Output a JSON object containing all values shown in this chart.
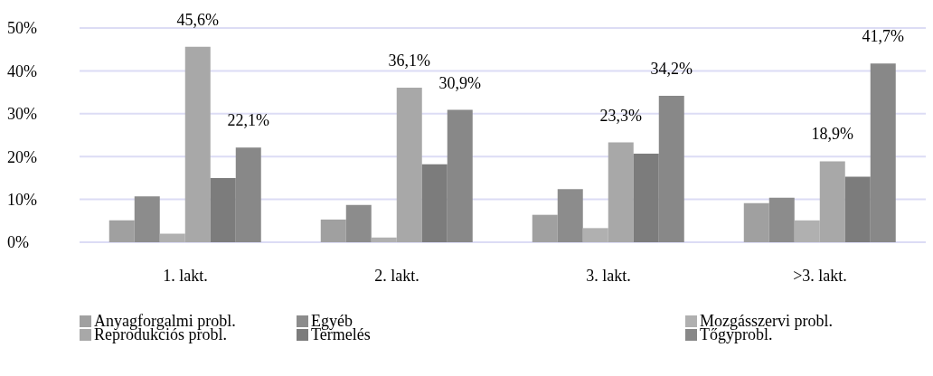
{
  "chart_data": {
    "type": "bar",
    "categories": [
      "1. lakt.",
      "2. lakt.",
      "3. lakt.",
      ">3. lakt."
    ],
    "series": [
      {
        "name": "Anyagforgalmi probl.",
        "color": "#a0a0a0",
        "values": [
          5.1,
          5.3,
          6.4,
          9.1
        ]
      },
      {
        "name": "Egyéb",
        "color": "#8c8c8c",
        "values": [
          10.7,
          8.7,
          12.4,
          10.4
        ]
      },
      {
        "name": "Mozgásszervi probl.",
        "color": "#b0b0b0",
        "values": [
          2.0,
          1.1,
          3.3,
          5.1
        ]
      },
      {
        "name": "Reprodukciós probl.",
        "color": "#a8a8a8",
        "values": [
          45.6,
          36.1,
          23.3,
          18.9
        ],
        "value_labels": [
          "45,6%",
          "36,1%",
          "23,3%",
          "18,9%"
        ]
      },
      {
        "name": "Termelés",
        "color": "#7c7c7c",
        "values": [
          15.0,
          18.2,
          20.7,
          15.3
        ]
      },
      {
        "name": "Tőgyprobl.",
        "color": "#888888",
        "values": [
          22.1,
          30.9,
          34.2,
          41.7
        ],
        "value_labels": [
          "22,1%",
          "30,9%",
          "34,2%",
          "41,7%"
        ]
      }
    ],
    "ylim": [
      0,
      50
    ],
    "yticks": [
      {
        "value": 0,
        "label": "0%"
      },
      {
        "value": 10,
        "label": "10%"
      },
      {
        "value": 20,
        "label": "20%"
      },
      {
        "value": 30,
        "label": "30%"
      },
      {
        "value": 40,
        "label": "40%"
      },
      {
        "value": 50,
        "label": "50%"
      }
    ],
    "grid": "y",
    "legend": "bottom"
  }
}
